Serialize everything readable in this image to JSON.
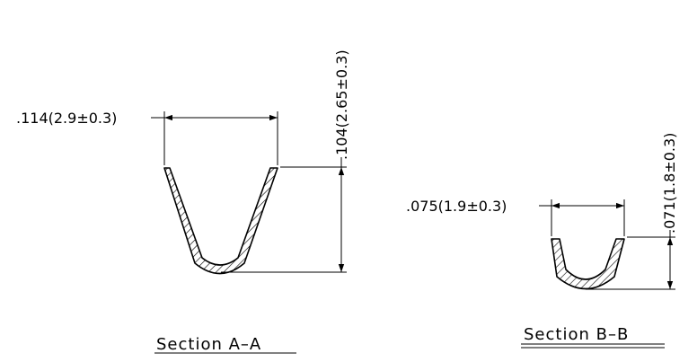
{
  "section_a": {
    "width_dim": ".114(2.9±0.3)",
    "height_dim": ".104(2.65±0.3)",
    "title": "Section A–A"
  },
  "section_b": {
    "width_dim": ".075(1.9±0.3)",
    "height_dim": ".071(1.8±0.3)",
    "title": "Section B–B"
  }
}
